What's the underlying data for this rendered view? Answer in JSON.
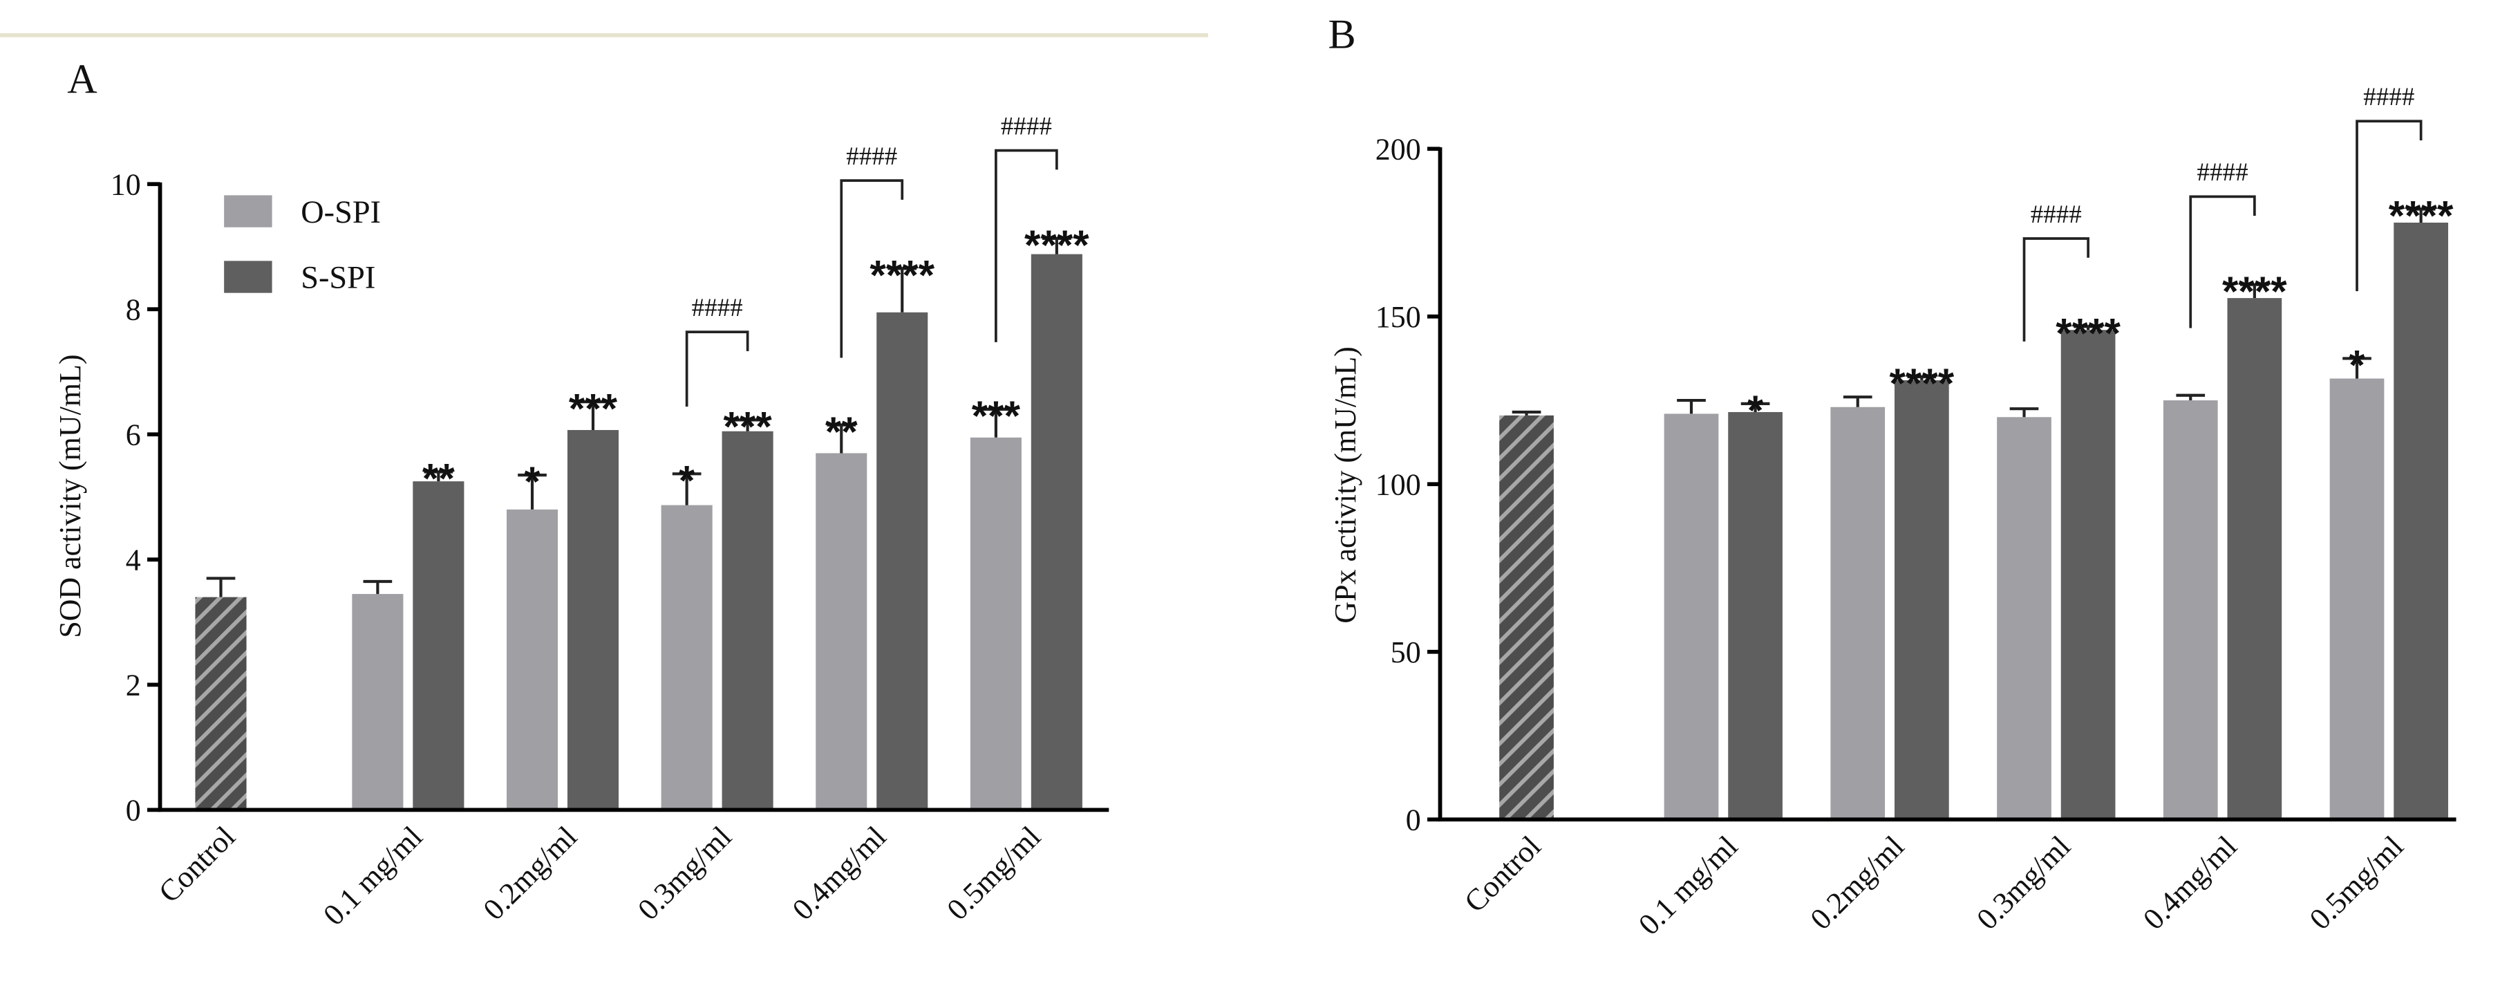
{
  "chart_data": [
    {
      "type": "bar",
      "title": "A",
      "ylabel": "SOD activity (mU/mL)",
      "categories": [
        "Control",
        "0.1 mg/ml",
        "0.2mg/ml",
        "0.3mg/ml",
        "0.4mg/ml",
        "0.5mg/ml"
      ],
      "ylim": [
        0,
        10
      ],
      "yticks": [
        0,
        2,
        4,
        6,
        8,
        10
      ],
      "legend": "upper left",
      "control": {
        "value": 3.4,
        "error": 0.3,
        "color": "#4d4d4d"
      },
      "series": [
        {
          "name": "O-SPI",
          "color": "#a0a0a4",
          "values": [
            null,
            3.45,
            4.8,
            4.87,
            5.7,
            5.95
          ],
          "errors": [
            null,
            0.2,
            0.55,
            0.5,
            0.45,
            0.45
          ],
          "labels": [
            null,
            null,
            "*",
            "*",
            "**",
            "***"
          ]
        },
        {
          "name": "S-SPI",
          "color": "#5f5f5f",
          "values": [
            null,
            5.25,
            6.07,
            6.05,
            7.95,
            8.88
          ],
          "errors": [
            null,
            0.15,
            0.45,
            0.18,
            0.7,
            0.25
          ],
          "labels": [
            null,
            "**",
            "***",
            "***",
            "****",
            "****"
          ]
        }
      ],
      "brackets": [
        null,
        null,
        null,
        "####",
        "####",
        "####"
      ]
    },
    {
      "type": "bar",
      "title": "B",
      "ylabel": "GPx activity (mU/mL)",
      "categories": [
        "Control",
        "0.1 mg/ml",
        "0.2mg/ml",
        "0.3mg/ml",
        "0.4mg/ml",
        "0.5mg/ml"
      ],
      "ylim": [
        0,
        200
      ],
      "yticks": [
        0,
        50,
        100,
        150,
        200
      ],
      "control": {
        "value": 120.5,
        "error": 1,
        "color": "#4d4d4d"
      },
      "series": [
        {
          "name": "O-SPI",
          "color": "#a0a0a4",
          "values": [
            null,
            121,
            123,
            120,
            125,
            131.5
          ],
          "errors": [
            null,
            4,
            3,
            2.5,
            1.5,
            6
          ],
          "labels": [
            null,
            null,
            null,
            null,
            null,
            "*"
          ]
        },
        {
          "name": "S-SPI",
          "color": "#5f5f5f",
          "values": [
            null,
            121.5,
            131,
            146,
            155.5,
            178
          ],
          "errors": [
            null,
            2.5,
            1,
            1,
            4,
            4
          ],
          "labels": [
            null,
            "*",
            "****",
            "****",
            "****",
            "****"
          ]
        }
      ],
      "brackets": [
        null,
        null,
        null,
        "####",
        "####",
        "####"
      ]
    }
  ]
}
